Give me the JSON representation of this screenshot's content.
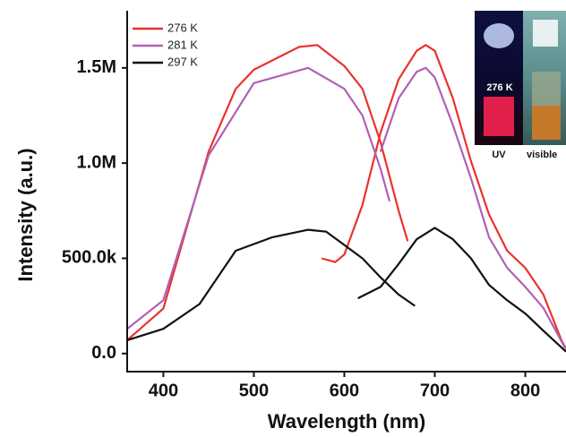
{
  "chart_data": {
    "type": "line",
    "x_label": "Wavelength (nm)",
    "y_label": "Intensity (a.u.)",
    "xlim": [
      360,
      845
    ],
    "xticks": [
      400,
      500,
      600,
      700,
      800
    ],
    "ylim": [
      -95000,
      1800000
    ],
    "yticks": [
      {
        "value": 0,
        "label": "0.0"
      },
      {
        "value": 500000,
        "label": "500.0k"
      },
      {
        "value": 1000000,
        "label": "1.0M"
      },
      {
        "value": 1500000,
        "label": "1.5M"
      }
    ],
    "legend": "top-left",
    "series": [
      {
        "name": "276 K",
        "color": "#e8332f",
        "x": [
          360,
          400,
          450,
          480,
          500,
          550,
          570,
          600,
          620,
          640,
          660,
          670,
          null,
          575,
          590,
          600,
          620,
          640,
          660,
          680,
          690,
          700,
          720,
          740,
          760,
          780,
          800,
          820,
          840,
          845
        ],
        "values": [
          70000,
          236000,
          1060000,
          1390000,
          1490000,
          1610000,
          1620000,
          1510000,
          1390000,
          1110000,
          750000,
          590000,
          null,
          500000,
          480000,
          520000,
          780000,
          1160000,
          1440000,
          1590000,
          1620000,
          1590000,
          1340000,
          1010000,
          730000,
          540000,
          450000,
          310000,
          70000,
          25000
        ]
      },
      {
        "name": "281 K",
        "color": "#b160b5",
        "x": [
          360,
          400,
          450,
          500,
          560,
          600,
          620,
          640,
          650,
          null,
          640,
          660,
          680,
          690,
          700,
          720,
          740,
          760,
          780,
          800,
          820,
          845
        ],
        "values": [
          130000,
          280000,
          1040000,
          1420000,
          1500000,
          1390000,
          1250000,
          970000,
          800000,
          null,
          1060000,
          1340000,
          1480000,
          1500000,
          1450000,
          1200000,
          920000,
          610000,
          450000,
          350000,
          240000,
          20000
        ]
      },
      {
        "name": "297 K",
        "color": "#111111",
        "x": [
          360,
          400,
          440,
          480,
          520,
          560,
          580,
          600,
          620,
          640,
          660,
          678,
          null,
          615,
          640,
          660,
          680,
          700,
          720,
          740,
          760,
          780,
          800,
          820,
          845
        ],
        "values": [
          70000,
          130000,
          260000,
          540000,
          610000,
          650000,
          640000,
          570000,
          500000,
          400000,
          310000,
          250000,
          null,
          290000,
          350000,
          470000,
          600000,
          660000,
          600000,
          500000,
          360000,
          280000,
          210000,
          120000,
          10000
        ]
      }
    ],
    "inset": {
      "labels": [
        "276 K",
        "UV",
        "visible"
      ]
    }
  }
}
